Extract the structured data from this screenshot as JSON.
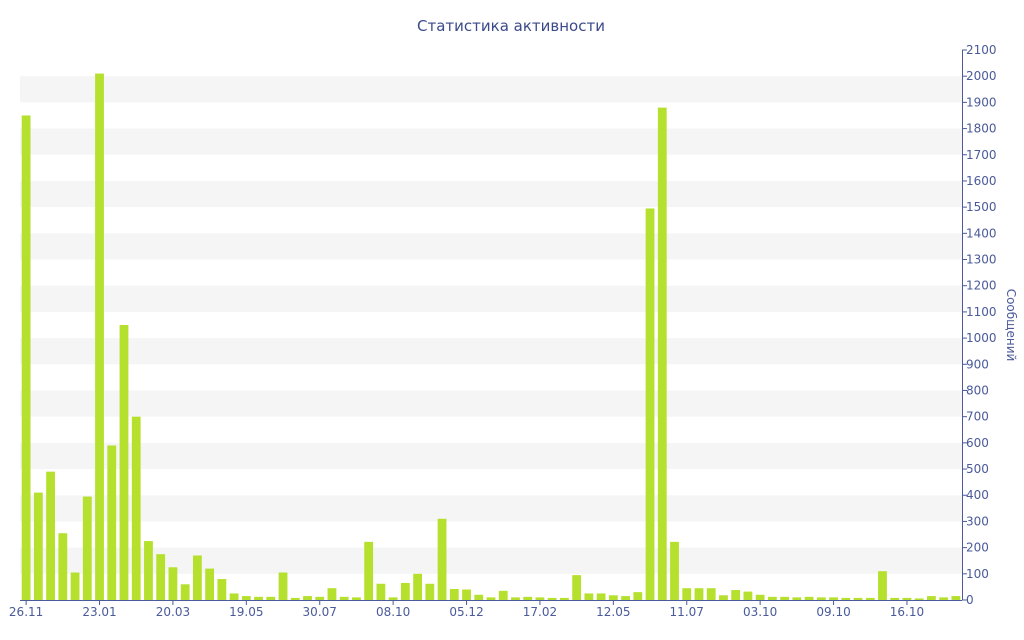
{
  "chart_data": {
    "type": "bar",
    "title": "Статистика активности",
    "ylabel": "Сообщений",
    "xlabel": "",
    "ylim": [
      0,
      2100
    ],
    "y_ticks": [
      0,
      100,
      200,
      300,
      400,
      500,
      600,
      700,
      800,
      900,
      1000,
      1100,
      1200,
      1300,
      1400,
      1500,
      1600,
      1700,
      1800,
      1900,
      2000,
      2100
    ],
    "y_axis_position": "right",
    "grid": "alternating horizontal bands",
    "x_tick_labels": [
      {
        "label": "26.11",
        "bar_index": 0
      },
      {
        "label": "23.01",
        "bar_index": 6
      },
      {
        "label": "20.03",
        "bar_index": 12
      },
      {
        "label": "19.05",
        "bar_index": 18
      },
      {
        "label": "30.07",
        "bar_index": 24
      },
      {
        "label": "08.10",
        "bar_index": 30
      },
      {
        "label": "05.12",
        "bar_index": 36
      },
      {
        "label": "17.02",
        "bar_index": 42
      },
      {
        "label": "12.05",
        "bar_index": 48
      },
      {
        "label": "11.07",
        "bar_index": 54
      },
      {
        "label": "03.10",
        "bar_index": 60
      },
      {
        "label": "09.10",
        "bar_index": 66
      },
      {
        "label": "16.10",
        "bar_index": 72
      }
    ],
    "values": [
      1850,
      410,
      490,
      255,
      105,
      395,
      2010,
      590,
      1050,
      700,
      225,
      175,
      125,
      60,
      170,
      120,
      80,
      25,
      15,
      12,
      12,
      105,
      8,
      15,
      12,
      45,
      12,
      10,
      222,
      62,
      10,
      65,
      100,
      62,
      310,
      42,
      40,
      20,
      10,
      35,
      10,
      12,
      10,
      8,
      8,
      95,
      25,
      25,
      18,
      15,
      30,
      1495,
      1880,
      222,
      45,
      45,
      45,
      18,
      38,
      32,
      20,
      12,
      12,
      10,
      12,
      10,
      10,
      8,
      8,
      8,
      110,
      8,
      8,
      6,
      15,
      10,
      15
    ]
  },
  "colors": {
    "bar": "#b5e02d",
    "band": "#f5f5f5",
    "axis": "#4a5a9a",
    "title": "#3b4a8a"
  }
}
